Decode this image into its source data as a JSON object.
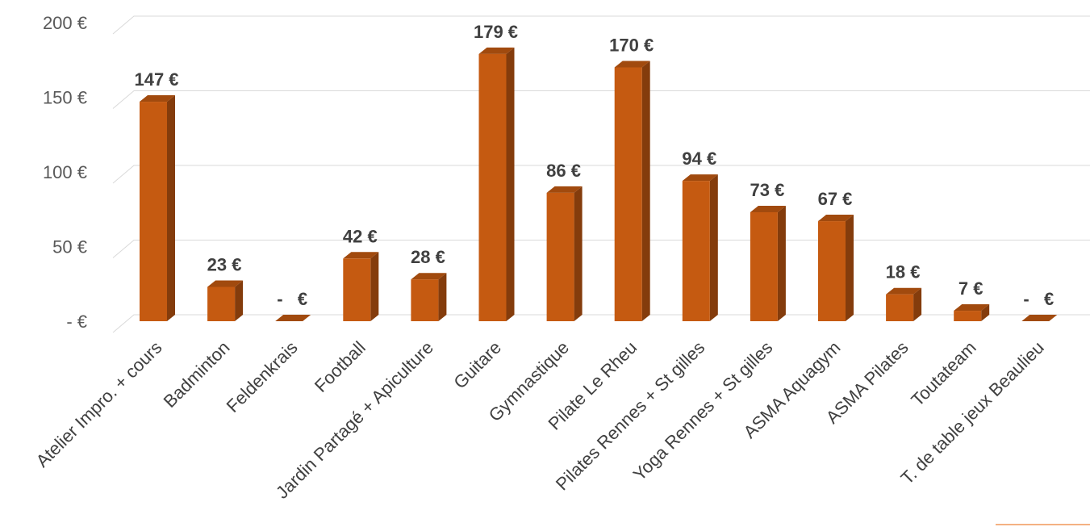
{
  "chart_data": {
    "type": "bar",
    "categories": [
      "Atelier Impro. + cours",
      "Badminton",
      "Feldenkrais",
      "Football",
      "Jardin Partagé + Apiculture",
      "Guitare",
      "Gymnastique",
      "Pilate Le Rheu",
      "Pilates Rennes + St gilles",
      "Yoga Rennes + St gilles",
      "ASMA Aquagym",
      "ASMA Pilates",
      "Toutateam",
      "T. de table jeux Beaulieu"
    ],
    "values": [
      147,
      23,
      0,
      42,
      28,
      179,
      86,
      170,
      94,
      73,
      67,
      18,
      7,
      0
    ],
    "data_labels": [
      "147 €",
      "23 €",
      "-   €",
      "42 €",
      "28 €",
      "179 €",
      "86 €",
      "170 €",
      "94 €",
      "73 €",
      "67 €",
      "18 €",
      "7 €",
      "-   €"
    ],
    "ylim": [
      0,
      200
    ],
    "yticks": [
      0,
      50,
      100,
      150,
      200
    ],
    "ytick_labels": [
      "-  €",
      "50 €",
      "100 €",
      "150 €",
      "200 €"
    ],
    "grid": true,
    "legend": "none",
    "bar_3d": true,
    "colors": {
      "bar_front": "#c55a11",
      "bar_side": "#843c0c",
      "bar_top": "#a14a0e",
      "grid": "#d9d9d9",
      "accent_line": "#f4b183"
    }
  }
}
